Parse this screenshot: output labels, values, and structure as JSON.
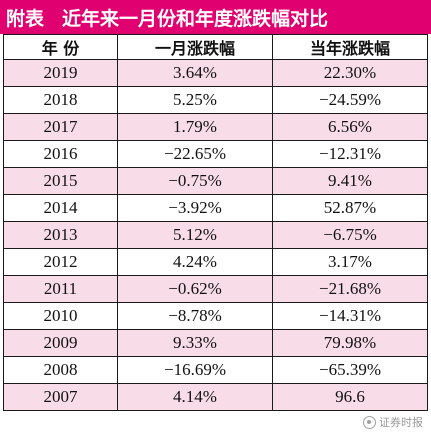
{
  "title": {
    "label": "附表",
    "text": "近年来一月份和年度涨跌幅对比"
  },
  "table": {
    "headers": [
      "年 份",
      "一月涨跌幅",
      "当年涨跌幅"
    ],
    "rows": [
      [
        "2019",
        "3.64%",
        "22.30%"
      ],
      [
        "2018",
        "5.25%",
        "−24.59%"
      ],
      [
        "2017",
        "1.79%",
        "6.56%"
      ],
      [
        "2016",
        "−22.65%",
        "−12.31%"
      ],
      [
        "2015",
        "−0.75%",
        "9.41%"
      ],
      [
        "2014",
        "−3.92%",
        "52.87%"
      ],
      [
        "2013",
        "5.12%",
        "−6.75%"
      ],
      [
        "2012",
        "4.24%",
        "3.17%"
      ],
      [
        "2011",
        "−0.62%",
        "−21.68%"
      ],
      [
        "2010",
        "−8.78%",
        "−14.31%"
      ],
      [
        "2009",
        "9.33%",
        "79.98%"
      ],
      [
        "2008",
        "−16.69%",
        "−65.39%"
      ],
      [
        "2007",
        "4.14%",
        "96.6"
      ]
    ]
  },
  "watermark": {
    "text": "证券时报",
    "icon": "watermark-logo-icon"
  },
  "colors": {
    "title_bg": "#e0006f",
    "title_fg": "#ffffff",
    "row_alt_bg": "#f8dde8"
  }
}
